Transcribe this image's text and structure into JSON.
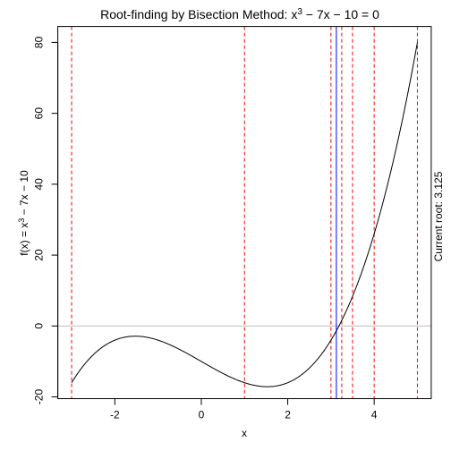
{
  "chart_data": {
    "type": "line",
    "title": {
      "prefix": "Root-finding by Bisection Method: x",
      "sup": "3",
      "suffix": " − 7x − 10 = 0"
    },
    "xlabel": "x",
    "ylabel": {
      "prefix": "f(x) = x",
      "sup": "3",
      "suffix": " − 7x − 10"
    },
    "right_label": "Current root: 3.125",
    "xlim": [
      -3.32,
      5.32
    ],
    "ylim": [
      -20.5,
      84.5
    ],
    "x_ticks": [
      {
        "value": -2,
        "label": "-2"
      },
      {
        "value": 0,
        "label": "0"
      },
      {
        "value": 2,
        "label": "2"
      },
      {
        "value": 4,
        "label": "4"
      }
    ],
    "y_ticks": [
      {
        "value": -20,
        "label": "-20"
      },
      {
        "value": 0,
        "label": "0"
      },
      {
        "value": 20,
        "label": "20"
      },
      {
        "value": 40,
        "label": "40"
      },
      {
        "value": 60,
        "label": "60"
      },
      {
        "value": 80,
        "label": "80"
      }
    ],
    "function": {
      "coefficients": {
        "a3": 1,
        "a2": 0,
        "a1": -7,
        "a0": -10
      },
      "domain": [
        -3,
        5
      ],
      "color": "#000000"
    },
    "reference_lines": [
      {
        "kind": "horizontal",
        "value": 0,
        "color": "#bebebe"
      }
    ],
    "interval_lines": {
      "color": "#ff0000",
      "x": [
        -3,
        1,
        3,
        3.25,
        3.5,
        4,
        5
      ]
    },
    "current_root_line": {
      "x": 3.125,
      "color": "#0000ff"
    }
  }
}
